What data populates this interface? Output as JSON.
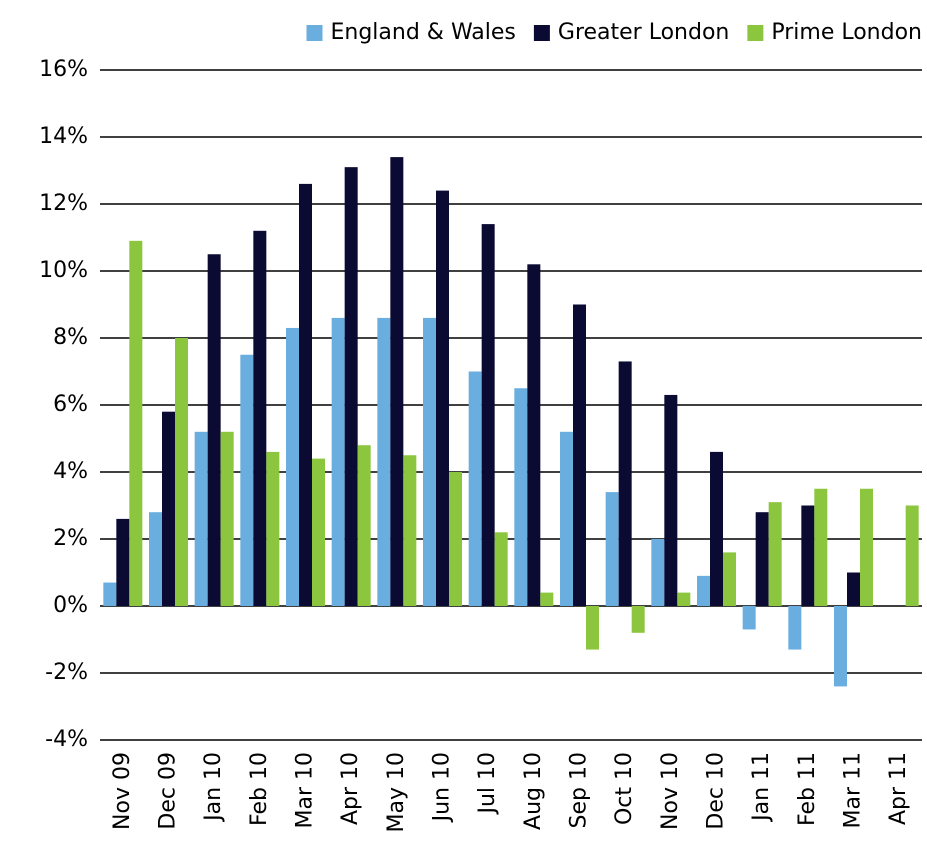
{
  "chart_data": {
    "type": "bar",
    "categories": [
      "Nov 09",
      "Dec 09",
      "Jan 10",
      "Feb 10",
      "Mar 10",
      "Apr 10",
      "May 10",
      "Jun 10",
      "Jul 10",
      "Aug 10",
      "Sep 10",
      "Oct 10",
      "Nov 10",
      "Dec 10",
      "Jan 11",
      "Feb 11",
      "Mar 11",
      "Apr 11"
    ],
    "series": [
      {
        "name": "England & Wales",
        "color": "#6aaee0",
        "values": [
          0.7,
          2.8,
          5.2,
          7.5,
          8.3,
          8.6,
          8.6,
          8.6,
          7.0,
          6.5,
          5.2,
          3.4,
          2.0,
          0.9,
          -0.7,
          -1.3,
          -2.4,
          null
        ]
      },
      {
        "name": "Greater London",
        "color": "#0a0a33",
        "values": [
          2.6,
          5.8,
          10.5,
          11.2,
          12.6,
          13.1,
          13.4,
          12.4,
          11.4,
          10.2,
          9.0,
          7.3,
          6.3,
          4.6,
          2.8,
          3.0,
          1.0,
          null
        ]
      },
      {
        "name": "Prime London",
        "color": "#8cc63f",
        "values": [
          10.9,
          8.0,
          5.2,
          4.6,
          4.4,
          4.8,
          4.5,
          4.0,
          2.2,
          0.4,
          -1.3,
          -0.8,
          0.4,
          1.6,
          3.1,
          3.5,
          3.5,
          3.0
        ]
      }
    ],
    "ylim": [
      -4,
      16
    ],
    "yticks": [
      {
        "value": -4,
        "label": "-4%"
      },
      {
        "value": -2,
        "label": "-2%"
      },
      {
        "value": 0,
        "label": "0%"
      },
      {
        "value": 2,
        "label": "2%"
      },
      {
        "value": 4,
        "label": "4%"
      },
      {
        "value": 6,
        "label": "6%"
      },
      {
        "value": 8,
        "label": "8%"
      },
      {
        "value": 10,
        "label": "10%"
      },
      {
        "value": 12,
        "label": "12%"
      },
      {
        "value": 14,
        "label": "14%"
      },
      {
        "value": 16,
        "label": "16%"
      }
    ],
    "grid": true,
    "legend": "top-right"
  }
}
